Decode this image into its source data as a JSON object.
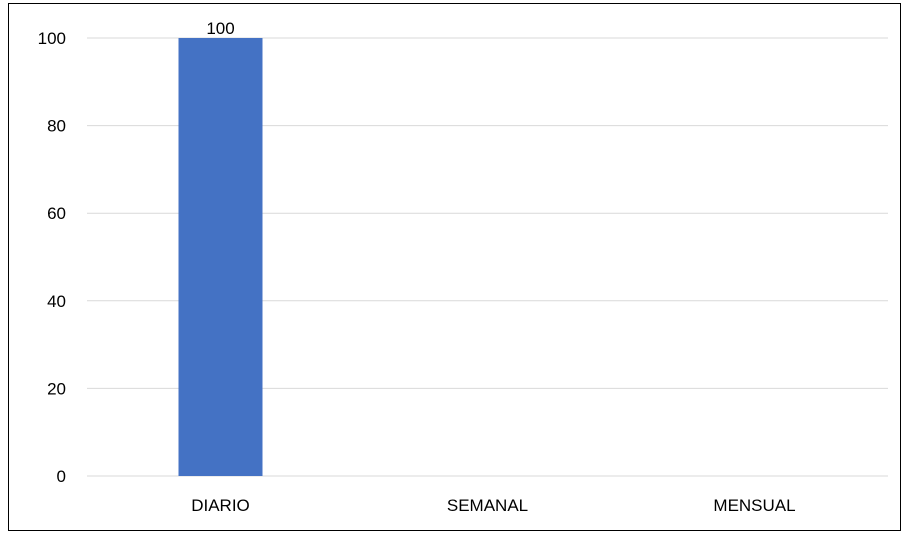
{
  "chart_data": {
    "type": "bar",
    "categories": [
      "DIARIO",
      "SEMANAL",
      "MENSUAL"
    ],
    "values": [
      100,
      0,
      0
    ],
    "data_labels": [
      "100",
      "",
      ""
    ],
    "y_ticks": [
      "0",
      "20",
      "40",
      "60",
      "80",
      "100"
    ],
    "ylim": [
      0,
      100
    ],
    "grid": true,
    "legend": "none",
    "colors": {
      "bar": "#4472C4",
      "grid": "#D9D9D9",
      "border": "#000000"
    }
  }
}
